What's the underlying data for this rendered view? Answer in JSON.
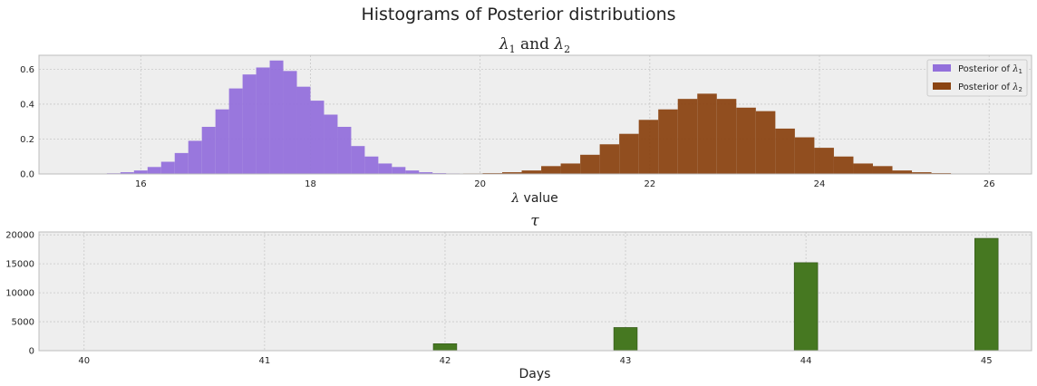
{
  "figure": {
    "suptitle": "Histograms of Posterior distributions"
  },
  "chart_data": [
    {
      "type": "bar",
      "title": "λ₁ and λ₂",
      "xlabel": "λ value",
      "ylabel": "",
      "xlim": [
        14.8,
        26.5
      ],
      "ylim": [
        0,
        0.68
      ],
      "xticks": [
        "16",
        "18",
        "20",
        "22",
        "24",
        "26"
      ],
      "yticks": [
        "0.0",
        "0.2",
        "0.4",
        "0.6"
      ],
      "grid": true,
      "legend": "top-right",
      "series": [
        {
          "name": "Posterior of λ₁",
          "color": "#9370DB",
          "bin_edges": [
            15.6,
            15.76,
            15.92,
            16.08,
            16.24,
            16.4,
            16.56,
            16.72,
            16.88,
            17.04,
            17.2,
            17.36,
            17.52,
            17.68,
            17.84,
            18.0,
            18.16,
            18.32,
            18.48,
            18.64,
            18.8,
            18.96,
            19.12,
            19.28,
            19.44,
            19.6,
            19.76,
            19.92,
            20.08
          ],
          "values": [
            0.004,
            0.01,
            0.02,
            0.04,
            0.07,
            0.12,
            0.19,
            0.27,
            0.37,
            0.49,
            0.57,
            0.61,
            0.65,
            0.59,
            0.5,
            0.42,
            0.34,
            0.27,
            0.16,
            0.1,
            0.06,
            0.04,
            0.02,
            0.01,
            0.005,
            0.003,
            0.002,
            0.001
          ]
        },
        {
          "name": "Posterior of λ₂",
          "color": "#8B4513",
          "bin_edges": [
            19.8,
            20.03,
            20.26,
            20.49,
            20.72,
            20.95,
            21.18,
            21.41,
            21.64,
            21.87,
            22.1,
            22.33,
            22.56,
            22.79,
            23.02,
            23.25,
            23.48,
            23.71,
            23.94,
            24.17,
            24.4,
            24.63,
            24.86,
            25.09,
            25.32,
            25.55
          ],
          "values": [
            0.003,
            0.005,
            0.01,
            0.02,
            0.045,
            0.06,
            0.11,
            0.17,
            0.23,
            0.31,
            0.37,
            0.43,
            0.46,
            0.43,
            0.38,
            0.36,
            0.26,
            0.21,
            0.15,
            0.1,
            0.06,
            0.045,
            0.02,
            0.01,
            0.005
          ]
        }
      ]
    },
    {
      "type": "bar",
      "title": "τ",
      "xlabel": "Days",
      "ylabel": "",
      "xlim": [
        39.75,
        45.25
      ],
      "ylim": [
        0,
        20500
      ],
      "xticks": [
        "40",
        "41",
        "42",
        "43",
        "44",
        "45"
      ],
      "yticks": [
        "0",
        "5000",
        "10000",
        "15000",
        "20000"
      ],
      "grid": true,
      "series": [
        {
          "name": "",
          "color": "#467821",
          "x": [
            42,
            43,
            44,
            45
          ],
          "values": [
            1200,
            4000,
            15200,
            19400
          ]
        }
      ]
    }
  ]
}
